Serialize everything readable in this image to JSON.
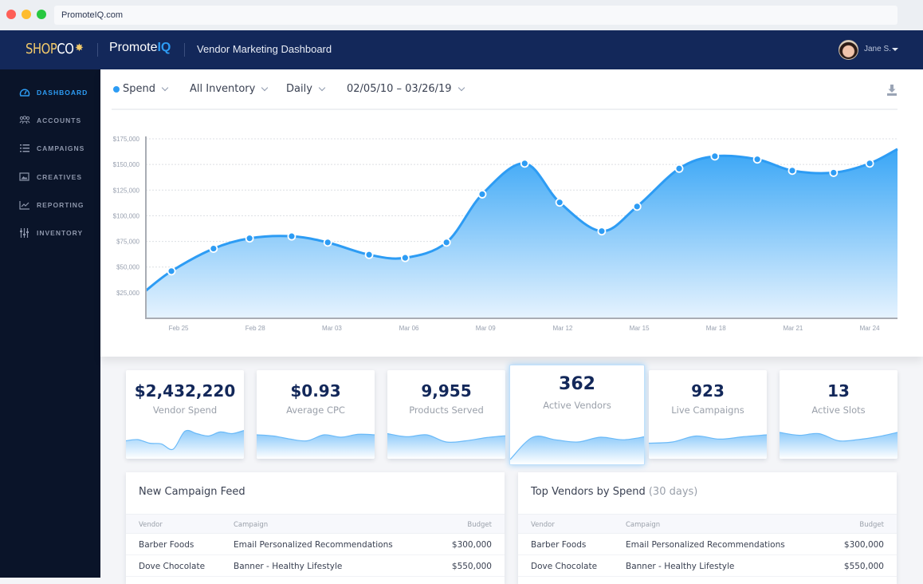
{
  "browser": {
    "url": "PromoteIQ.com"
  },
  "header": {
    "brand_shop_part1": "SHOP",
    "brand_shop_part2": "CO",
    "brand_star": "✸",
    "brand_promote_part1": "Promote",
    "brand_promote_part2": "IQ",
    "title": "Vendor Marketing Dashboard",
    "user_name": "Jane S."
  },
  "sidebar": {
    "items": [
      {
        "label": "DASHBOARD",
        "icon": "gauge-icon",
        "active": true
      },
      {
        "label": "ACCOUNTS",
        "icon": "users-icon",
        "active": false
      },
      {
        "label": "CAMPAIGNS",
        "icon": "list-icon",
        "active": false
      },
      {
        "label": "CREATIVES",
        "icon": "image-icon",
        "active": false
      },
      {
        "label": "REPORTING",
        "icon": "line-chart-icon",
        "active": false
      },
      {
        "label": "INVENTORY",
        "icon": "sliders-icon",
        "active": false
      }
    ]
  },
  "filters": {
    "metric": "Spend",
    "inventory": "All Inventory",
    "interval": "Daily",
    "date_range": "02/05/10 – 03/26/19"
  },
  "colors": {
    "accent": "#2d9cf4",
    "navy": "#13285a",
    "sidebar_bg": "#0a1429",
    "gold": "#f1c96a"
  },
  "chart_data": {
    "type": "area",
    "title": "",
    "xlabel": "",
    "ylabel": "",
    "x": [
      0,
      0.68,
      1.8,
      2.76,
      3.88,
      4.84,
      5.94,
      6.9,
      8.0,
      8.95,
      10.08,
      11.01,
      12.13,
      13.07,
      14.19,
      15.14,
      16.27,
      17.2,
      18.3,
      19.26,
      20
    ],
    "values": [
      27000,
      46000,
      68000,
      78000,
      80000,
      74000,
      62000,
      59000,
      74000,
      121000,
      151000,
      113000,
      85000,
      109000,
      146000,
      158000,
      155000,
      144000,
      142000,
      151000,
      165000
    ],
    "markers": [
      false,
      true,
      true,
      true,
      true,
      true,
      true,
      true,
      true,
      true,
      true,
      true,
      true,
      true,
      true,
      true,
      true,
      true,
      true,
      true,
      false
    ],
    "xlim": [
      0,
      20
    ],
    "ylim": [
      0,
      175000
    ],
    "grid": true,
    "y_ticks": [
      {
        "value": 175000,
        "label": "$175,000"
      },
      {
        "value": 150000,
        "label": "$150,000"
      },
      {
        "value": 125000,
        "label": "$125,000"
      },
      {
        "value": 100000,
        "label": "$100,000"
      },
      {
        "value": 75000,
        "label": "$75,000"
      },
      {
        "value": 50000,
        "label": "$50,000"
      },
      {
        "value": 25000,
        "label": "$25,000"
      }
    ],
    "x_ticks": [
      {
        "value": 0.87,
        "label": "Feb 25"
      },
      {
        "value": 2.91,
        "label": "Feb 28"
      },
      {
        "value": 4.95,
        "label": "Mar 03"
      },
      {
        "value": 7.0,
        "label": "Mar 06"
      },
      {
        "value": 9.04,
        "label": "Mar 09"
      },
      {
        "value": 11.09,
        "label": "Mar 12"
      },
      {
        "value": 13.13,
        "label": "Mar 15"
      },
      {
        "value": 15.17,
        "label": "Mar 18"
      },
      {
        "value": 17.22,
        "label": "Mar 21"
      },
      {
        "value": 19.26,
        "label": "Mar 24"
      }
    ]
  },
  "kpis": [
    {
      "value": "$2,432,220",
      "label": "Vendor Spend",
      "spark": [
        0.55,
        0.6,
        0.45,
        0.42,
        0.2,
        0.95,
        0.85,
        0.75,
        0.92,
        0.85,
        0.98
      ],
      "active": false
    },
    {
      "value": "$0.93",
      "label": "Average CPC",
      "spark": [
        0.8,
        0.75,
        0.62,
        0.55,
        0.8,
        0.7,
        0.82,
        0.8
      ],
      "active": false
    },
    {
      "value": "9,955",
      "label": "Products Served",
      "spark": [
        0.85,
        0.72,
        0.8,
        0.5,
        0.55,
        0.68,
        0.76
      ],
      "active": false
    },
    {
      "value": "362",
      "label": "Active Vendors",
      "spark": [
        0.0,
        0.7,
        0.62,
        0.55,
        0.7,
        0.62,
        0.72
      ],
      "active": true
    },
    {
      "value": "923",
      "label": "Live Campaigns",
      "spark": [
        0.45,
        0.5,
        0.75,
        0.62,
        0.72,
        0.8
      ],
      "active": false
    },
    {
      "value": "13",
      "label": "Active Slots",
      "spark": [
        0.9,
        0.78,
        0.85,
        0.55,
        0.6,
        0.72,
        0.9
      ],
      "active": false
    }
  ],
  "campaign_feed": {
    "title": "New Campaign Feed",
    "columns": [
      "Vendor",
      "Campaign",
      "Budget"
    ],
    "rows": [
      [
        "Barber Foods",
        "Email Personalized Recommendations",
        "$300,000"
      ],
      [
        "Dove Chocolate",
        "Banner - Healthy Lifestyle",
        "$550,000"
      ]
    ]
  },
  "top_vendors": {
    "title": "Top Vendors by Spend",
    "title_muted": "(30 days)",
    "columns": [
      "Vendor",
      "Campaign",
      "Budget"
    ],
    "rows": [
      [
        "Barber Foods",
        "Email Personalized Recommendations",
        "$300,000"
      ],
      [
        "Dove Chocolate",
        "Banner - Healthy Lifestyle",
        "$550,000"
      ]
    ]
  }
}
